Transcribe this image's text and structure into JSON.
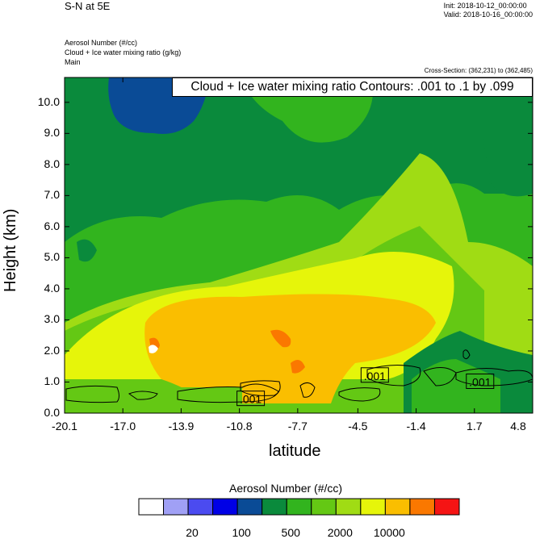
{
  "header": {
    "title": "S-N at 5E",
    "init": "Init: 2018-10-12_00:00:00",
    "valid": "Valid: 2018-10-16_00:00:00",
    "field1": "Aerosol Number   (#/cc)",
    "field2": "Cloud + Ice water mixing ratio   (g/kg)",
    "field3": "Main",
    "cross_section": "Cross-Section: (362,231) to (362,485)",
    "contour_info": "Cloud + Ice water mixing ratio Contours: .001 to .1 by .099"
  },
  "chart_data": {
    "type": "heatmap",
    "xlabel": "latitude",
    "ylabel": "Height (km)",
    "xlim": [
      -20.1,
      4.8
    ],
    "ylim": [
      0.0,
      10.8
    ],
    "x_ticks": [
      "-20.1",
      "-17.0",
      "-13.9",
      "-10.8",
      "-7.7",
      "-4.5",
      "-1.4",
      "1.7",
      "4.8"
    ],
    "y_ticks": [
      "0.0",
      "1.0",
      "2.0",
      "3.0",
      "4.0",
      "5.0",
      "6.0",
      "7.0",
      "8.0",
      "9.0",
      "10.0"
    ],
    "colorbar": {
      "title": "Aerosol Number  (#/cc)",
      "colors": [
        "#ffffff",
        "#a0a0f5",
        "#4b4bf0",
        "#0000e6",
        "#0a4b96",
        "#0a8a3c",
        "#32b41e",
        "#64c814",
        "#a0dc14",
        "#e6f50a",
        "#fabe00",
        "#fa7800",
        "#f51414"
      ],
      "labels": [
        "20",
        "100",
        "500",
        "2000",
        "10000"
      ]
    },
    "contour_labels": [
      {
        "text": ".001",
        "x": -10.2,
        "y": 0.45
      },
      {
        "text": ".001",
        "x": -3.6,
        "y": 1.2
      },
      {
        "text": ".001",
        "x": 2.0,
        "y": 1.0
      }
    ]
  }
}
